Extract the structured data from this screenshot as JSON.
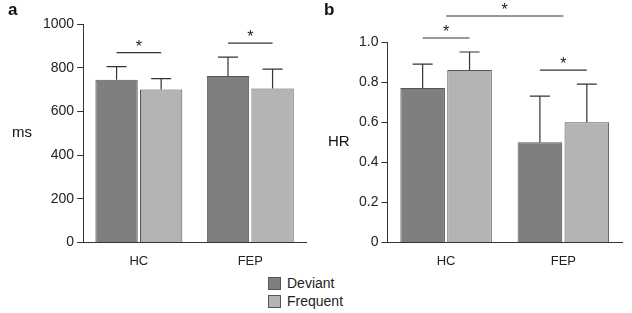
{
  "chart_data": [
    {
      "type": "bar",
      "title": "a",
      "y_label": "ms",
      "categories": [
        "HC",
        "FEP"
      ],
      "series": [
        {
          "name": "Deviant",
          "color": "#7f7f7f",
          "values": [
            745,
            762
          ],
          "errors": [
            60,
            86
          ]
        },
        {
          "name": "Frequent",
          "color": "#b4b4b4",
          "values": [
            700,
            705
          ],
          "errors": [
            50,
            88
          ]
        }
      ],
      "ylim": [
        0,
        1000
      ],
      "yticks": [
        0,
        200,
        400,
        600,
        800,
        1000
      ],
      "grid": false,
      "legend": false,
      "significance": [
        {
          "category": "HC",
          "label": "*"
        },
        {
          "category": "FEP",
          "label": "*"
        }
      ]
    },
    {
      "type": "bar",
      "title": "b",
      "y_label": "HR",
      "categories": [
        "HC",
        "FEP"
      ],
      "series": [
        {
          "name": "Deviant",
          "color": "#7f7f7f",
          "values": [
            0.77,
            0.5
          ],
          "errors": [
            0.12,
            0.23
          ]
        },
        {
          "name": "Frequent",
          "color": "#b4b4b4",
          "values": [
            0.86,
            0.6
          ],
          "errors": [
            0.09,
            0.19
          ]
        }
      ],
      "ylim": [
        0,
        1
      ],
      "yticks": [
        0,
        0.2,
        0.4,
        0.6,
        0.8,
        {
          "value": 1,
          "label": "1.0"
        }
      ],
      "grid": false,
      "legend": "bottom",
      "significance": [
        {
          "category": "HC",
          "label": "*"
        },
        {
          "category": "FEP",
          "label": "*"
        },
        {
          "categories": [
            "HC",
            "FEP"
          ],
          "label": "*"
        }
      ]
    }
  ]
}
